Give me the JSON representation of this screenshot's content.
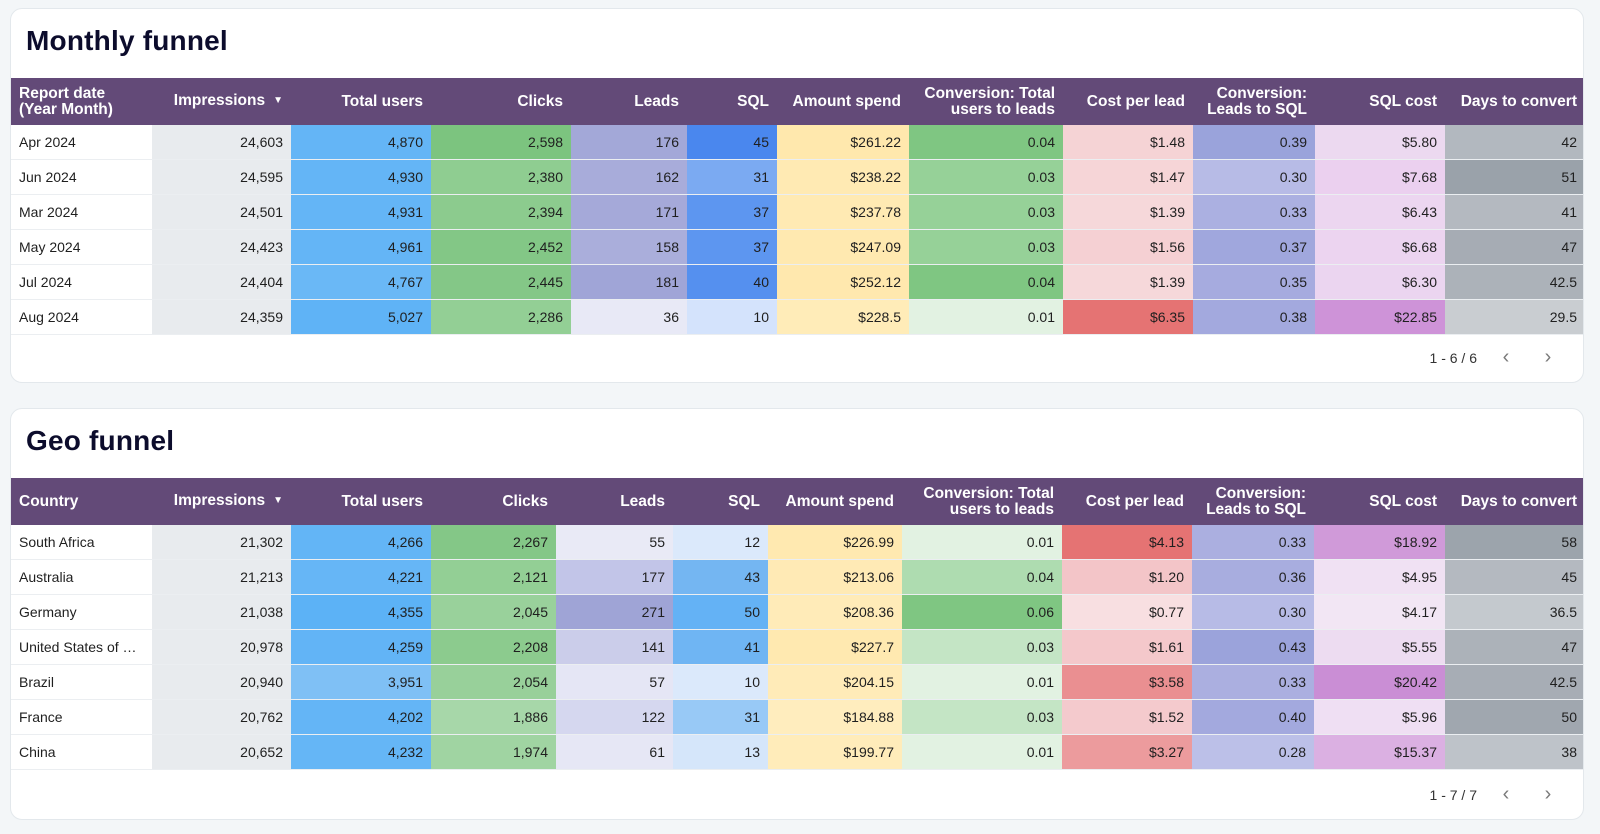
{
  "monthly": {
    "title": "Monthly funnel",
    "headers": [
      "Report date\n(Year Month)",
      "Impressions",
      "Total users",
      "Clicks",
      "Leads",
      "SQL",
      "Amount spend",
      "Conversion: Total users to leads",
      "Cost per lead",
      "Conversion: Leads to SQL",
      "SQL cost",
      "Days to convert"
    ],
    "sort_icon": "sort-descending-icon",
    "rows": [
      [
        "Apr 2024",
        "24,603",
        "4,870",
        "2,598",
        "176",
        "45",
        "$261.22",
        "0.04",
        "$1.48",
        "0.39",
        "$5.80",
        "42"
      ],
      [
        "Jun 2024",
        "24,595",
        "4,930",
        "2,380",
        "162",
        "31",
        "$238.22",
        "0.03",
        "$1.47",
        "0.30",
        "$7.68",
        "51"
      ],
      [
        "Mar 2024",
        "24,501",
        "4,931",
        "2,394",
        "171",
        "37",
        "$237.78",
        "0.03",
        "$1.39",
        "0.33",
        "$6.43",
        "41"
      ],
      [
        "May 2024",
        "24,423",
        "4,961",
        "2,452",
        "158",
        "37",
        "$247.09",
        "0.03",
        "$1.56",
        "0.37",
        "$6.68",
        "47"
      ],
      [
        "Jul 2024",
        "24,404",
        "4,767",
        "2,445",
        "181",
        "40",
        "$252.12",
        "0.04",
        "$1.39",
        "0.35",
        "$6.30",
        "42.5"
      ],
      [
        "Aug 2024",
        "24,359",
        "5,027",
        "2,286",
        "36",
        "10",
        "$228.5",
        "0.01",
        "$6.35",
        "0.38",
        "$22.85",
        "29.5"
      ]
    ],
    "pager": "1 - 6 / 6"
  },
  "geo": {
    "title": "Geo funnel",
    "headers": [
      "Country",
      "Impressions",
      "Total users",
      "Clicks",
      "Leads",
      "SQL",
      "Amount spend",
      "Conversion: Total users to leads",
      "Cost per lead",
      "Conversion: Leads to SQL",
      "SQL cost",
      "Days to convert"
    ],
    "sort_icon": "sort-descending-icon",
    "rows": [
      [
        "South Africa",
        "21,302",
        "4,266",
        "2,267",
        "55",
        "12",
        "$226.99",
        "0.01",
        "$4.13",
        "0.33",
        "$18.92",
        "58"
      ],
      [
        "Australia",
        "21,213",
        "4,221",
        "2,121",
        "177",
        "43",
        "$213.06",
        "0.04",
        "$1.20",
        "0.36",
        "$4.95",
        "45"
      ],
      [
        "Germany",
        "21,038",
        "4,355",
        "2,045",
        "271",
        "50",
        "$208.36",
        "0.06",
        "$0.77",
        "0.30",
        "$4.17",
        "36.5"
      ],
      [
        "United States of …",
        "20,978",
        "4,259",
        "2,208",
        "141",
        "41",
        "$227.7",
        "0.03",
        "$1.61",
        "0.43",
        "$5.55",
        "47"
      ],
      [
        "Brazil",
        "20,940",
        "3,951",
        "2,054",
        "57",
        "10",
        "$204.15",
        "0.01",
        "$3.58",
        "0.33",
        "$20.42",
        "42.5"
      ],
      [
        "France",
        "20,762",
        "4,202",
        "1,886",
        "122",
        "31",
        "$184.88",
        "0.03",
        "$1.52",
        "0.40",
        "$5.96",
        "50"
      ],
      [
        "China",
        "20,652",
        "4,232",
        "1,974",
        "61",
        "13",
        "$199.77",
        "0.01",
        "$3.27",
        "0.28",
        "$15.37",
        "38"
      ]
    ],
    "pager": "1 - 7 / 7"
  },
  "colors": {
    "header_bg": "#634a78",
    "monthly": [
      [
        "#fff",
        "#e8ebee",
        "#64b5f6",
        "#7cc47f",
        "#a3a8d8",
        "#4a87ee",
        "#ffe8ad",
        "#7fc682",
        "#f5d3d5",
        "#9aa3db",
        "#ecd9f0",
        "#b2b8bf"
      ],
      [
        "#fff",
        "#e8ebee",
        "#64b5f6",
        "#8fcd91",
        "#a8acda",
        "#7baaf2",
        "#ffeab3",
        "#96d198",
        "#f6d5d7",
        "#b7bbe6",
        "#ebd0ef",
        "#9aa2aa"
      ],
      [
        "#fff",
        "#e8ebee",
        "#64b5f6",
        "#8ccb8e",
        "#a5a9d9",
        "#5d96f0",
        "#ffeab3",
        "#96d198",
        "#f6d8da",
        "#abb0e1",
        "#ecd6f0",
        "#b4b9c0"
      ],
      [
        "#fff",
        "#e8ebee",
        "#64b5f6",
        "#83c786",
        "#aaaedb",
        "#5d96f0",
        "#ffe9b0",
        "#96d198",
        "#f5d0d3",
        "#a0a7dd",
        "#ecd4f0",
        "#a6acb4"
      ],
      [
        "#fff",
        "#e8ebee",
        "#6ab8f6",
        "#84c787",
        "#a0a5d7",
        "#5590ef",
        "#ffe8ae",
        "#7fc682",
        "#f6d8da",
        "#a6abdf",
        "#ebd5f0",
        "#acb2b9"
      ],
      [
        "#fff",
        "#e8ebee",
        "#5fb3f6",
        "#93cf95",
        "#e8e9f6",
        "#d4e3fc",
        "#ffecb8",
        "#e2f2e2",
        "#e57373",
        "#a3a9de",
        "#ce93d8",
        "#c9cdd1"
      ]
    ],
    "geo": [
      [
        "#fff",
        "#e8ebee",
        "#63b5f6",
        "#84c787",
        "#e9eaf6",
        "#dbe9fb",
        "#ffe9b0",
        "#e2f2e2",
        "#e57373",
        "#abafe0",
        "#d09ad9",
        "#9ca4ac"
      ],
      [
        "#fff",
        "#e8ebee",
        "#66b6f6",
        "#93cf95",
        "#c2c5e8",
        "#74b6f2",
        "#ffeab5",
        "#aedcb0",
        "#f3c5c8",
        "#a8addf",
        "#f0e1f3",
        "#b4b9c0"
      ],
      [
        "#fff",
        "#e8ebee",
        "#5cb2f6",
        "#99d19b",
        "#9fa4d6",
        "#64b2f5",
        "#ffebb8",
        "#7fc682",
        "#f8dfe1",
        "#b7bbe6",
        "#f2e6f4",
        "#c4c9ce"
      ],
      [
        "#fff",
        "#e8ebee",
        "#62b4f6",
        "#8ccb8e",
        "#cbcdea",
        "#6fb5f3",
        "#ffe9b0",
        "#c4e5c5",
        "#f4c8cb",
        "#9ba3db",
        "#eddcf1",
        "#acb2b9"
      ],
      [
        "#fff",
        "#e8ebee",
        "#7fc0f5",
        "#98d09a",
        "#e5e6f5",
        "#dbe9fb",
        "#ffebb8",
        "#e2f2e2",
        "#ea8f91",
        "#abafe0",
        "#ca8ed5",
        "#a7adb5"
      ],
      [
        "#fff",
        "#e8ebee",
        "#64b5f6",
        "#a7d7a9",
        "#d5d7ef",
        "#98c9f6",
        "#ffedbe",
        "#c4e5c5",
        "#f4cacd",
        "#a3a9de",
        "#efdff3",
        "#a0a7af"
      ],
      [
        "#fff",
        "#e8ebee",
        "#65b6f6",
        "#a0d4a2",
        "#e6e7f5",
        "#d5e6fa",
        "#ffecba",
        "#e2f2e2",
        "#ec9b9d",
        "#bcc0e8",
        "#dbb0e2",
        "#bec3c9"
      ]
    ]
  }
}
